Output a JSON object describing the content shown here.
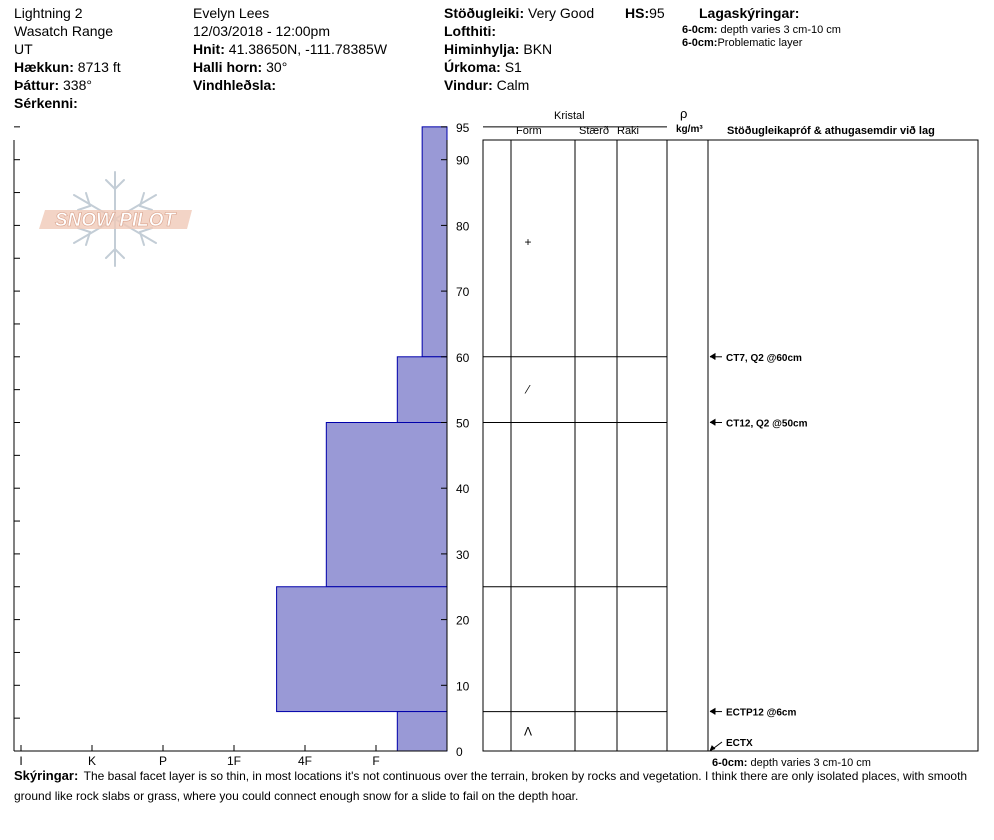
{
  "header": {
    "location_name": "Lightning 2",
    "range": "Wasatch Range",
    "state": "UT",
    "elevation_label": "Hækkun:",
    "elevation_value": "8713 ft",
    "aspect_label": "Þáttur:",
    "aspect_value": "338°",
    "features_label": "Sérkenni:",
    "observer": "Evelyn Lees",
    "datetime": "12/03/2018 - 12:00pm",
    "coords_label": "Hnit:",
    "coords_value": "41.38650N, -111.78385W",
    "slope_label": "Halli horn:",
    "slope_value": "30°",
    "wind_loading_label": "Vindhleðsla:",
    "stability_label": "Stöðugleiki:",
    "stability_value": "Very Good",
    "hs_label": "HS:",
    "hs_value": "95",
    "air_temp_label": "Lofthiti:",
    "sky_label": "Himinhylja:",
    "sky_value": "BKN",
    "precip_label": "Úrkoma:",
    "precip_value": "S1",
    "wind_label": "Vindur:",
    "wind_value": "Calm",
    "layer_notes_label": "Lagaskýringar:",
    "layer_notes": [
      {
        "range": "6-0cm:",
        "text": "depth varies 3 cm-10 cm"
      },
      {
        "range": "6-0cm:",
        "text": "Problematic layer"
      }
    ]
  },
  "logo_text": "SNOW PILOT",
  "columns": {
    "crystal": "Kristal",
    "form": "Form",
    "size": "Stærð",
    "moisture": "Raki",
    "rho": "ρ",
    "density_unit": "kg/m³",
    "tests": "Stöðugleikapróf & athugasemdir við lag"
  },
  "crystal_forms": [
    {
      "depth": 77.5,
      "symbol": "+"
    },
    {
      "depth": 55,
      "symbol": "⁄"
    },
    {
      "depth": 3,
      "symbol": "Ʌ"
    }
  ],
  "tests": [
    {
      "depth": 60,
      "label": "CT7, Q2 @60cm"
    },
    {
      "depth": 50,
      "label": "CT12, Q2 @50cm"
    },
    {
      "depth": 6,
      "label": "ECTP12 @6cm"
    },
    {
      "depth": 0,
      "label": "ECTX"
    }
  ],
  "bottom_note": {
    "range": "6-0cm:",
    "text": "depth varies 3 cm-10 cm"
  },
  "comments_label": "Skýringar:",
  "comments_text": "The basal facet layer is so thin, in most locations it's not continuous over the terrain, broken by rocks and vegetation. I think there are only isolated places, with smooth ground like rock slabs or grass, where you could connect enough snow for a slide to fail on the depth hoar.",
  "colors": {
    "hardness_fill": "#9999d6",
    "hardness_stroke": "#0000aa"
  },
  "chart_data": {
    "type": "bar",
    "orientation": "horizontal-step",
    "xlabel": "",
    "ylabel": "",
    "y_axis_ticks": [
      0,
      10,
      20,
      30,
      40,
      50,
      60,
      70,
      80,
      90,
      95
    ],
    "ylim": [
      0,
      97
    ],
    "hardness_scale": [
      "I",
      "K",
      "P",
      "1F",
      "4F",
      "F"
    ],
    "hardness_values": {
      "F": 1,
      "4F": 2,
      "1F": 3,
      "P": 4,
      "K": 5,
      "I": 6
    },
    "layers": [
      {
        "top": 95,
        "bottom": 60,
        "hardness": "F-",
        "value": 0.35
      },
      {
        "top": 60,
        "bottom": 50,
        "hardness": "F+",
        "value": 0.7
      },
      {
        "top": 50,
        "bottom": 25,
        "hardness": "4F",
        "value": 1.7
      },
      {
        "top": 25,
        "bottom": 6,
        "hardness": "1F-",
        "value": 2.4
      },
      {
        "top": 6,
        "bottom": 0,
        "hardness": "F+",
        "value": 0.7
      }
    ]
  }
}
